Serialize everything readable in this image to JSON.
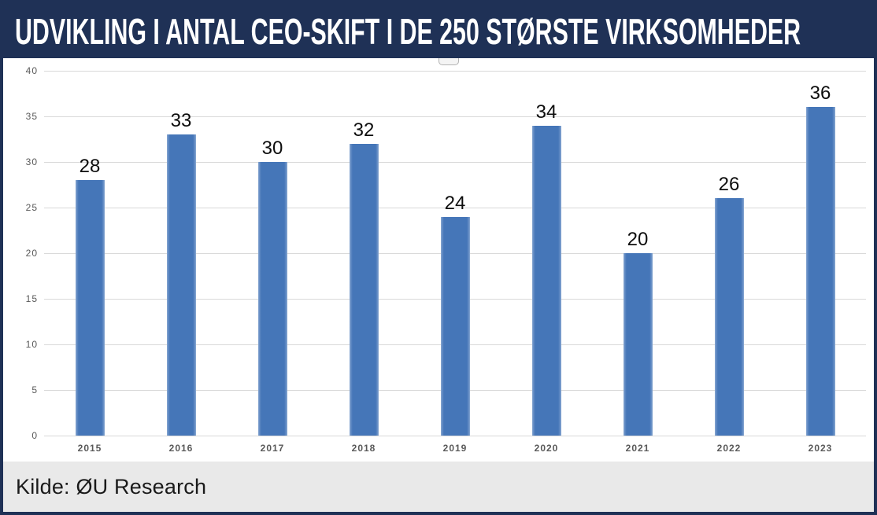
{
  "title": "UDVIKLING I ANTAL CEO-SKIFT I DE 250 STØRSTE VIRKSOMHEDER",
  "source": "Kilde: ØU Research",
  "colors": {
    "header_bg": "#1f3156",
    "bar_fill": "#4576b8",
    "gridline": "#d9d9d9",
    "footer_bg": "#e9e9e9",
    "axis_label": "#595959",
    "value_label": "#0d0d0d"
  },
  "chart_data": {
    "type": "bar",
    "title": "UDVIKLING I ANTAL CEO-SKIFT I DE 250 STØRSTE VIRKSOMHEDER",
    "categories": [
      "2015",
      "2016",
      "2017",
      "2018",
      "2019",
      "2020",
      "2021",
      "2022",
      "2023"
    ],
    "values": [
      28,
      33,
      30,
      32,
      24,
      34,
      20,
      26,
      36
    ],
    "xlabel": "",
    "ylabel": "",
    "ylim": [
      0,
      40
    ],
    "yticks": [
      0,
      5,
      10,
      15,
      20,
      25,
      30,
      35,
      40
    ],
    "grid": true,
    "data_labels": true,
    "legend": false,
    "source": "Kilde: ØU Research"
  }
}
